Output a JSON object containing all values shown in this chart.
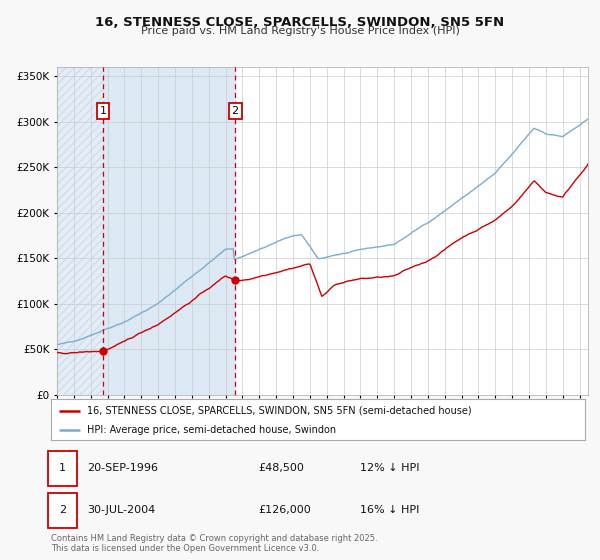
{
  "title_line1": "16, STENNESS CLOSE, SPARCELLS, SWINDON, SN5 5FN",
  "title_line2": "Price paid vs. HM Land Registry's House Price Index (HPI)",
  "legend_label_red": "16, STENNESS CLOSE, SPARCELLS, SWINDON, SN5 5FN (semi-detached house)",
  "legend_label_blue": "HPI: Average price, semi-detached house, Swindon",
  "transaction1_label": "1",
  "transaction1_date": "20-SEP-1996",
  "transaction1_price": "£48,500",
  "transaction1_hpi": "12% ↓ HPI",
  "transaction2_label": "2",
  "transaction2_date": "30-JUL-2004",
  "transaction2_price": "£126,000",
  "transaction2_hpi": "16% ↓ HPI",
  "footer": "Contains HM Land Registry data © Crown copyright and database right 2025.\nThis data is licensed under the Open Government Licence v3.0.",
  "bg_color": "#f8f8f8",
  "plot_bg_color": "#ffffff",
  "shaded_region_color": "#dce9f5",
  "hatch_color": "#c5d8eb",
  "red_color": "#cc0000",
  "blue_color": "#7aadcf",
  "grid_color": "#cccccc",
  "vline_color": "#cc0000",
  "ylim_max": 360000,
  "ytick_values": [
    0,
    50000,
    100000,
    150000,
    200000,
    250000,
    300000,
    350000
  ],
  "year_start": 1994,
  "year_end": 2025,
  "transaction1_year": 1996.72,
  "transaction2_year": 2004.57
}
